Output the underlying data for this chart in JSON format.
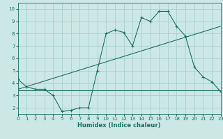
{
  "xlabel": "Humidex (Indice chaleur)",
  "xlim": [
    0,
    23
  ],
  "ylim": [
    1.5,
    10.5
  ],
  "xticks": [
    0,
    1,
    2,
    3,
    4,
    5,
    6,
    7,
    8,
    9,
    10,
    11,
    12,
    13,
    14,
    15,
    16,
    17,
    18,
    19,
    20,
    21,
    22,
    23
  ],
  "yticks": [
    2,
    3,
    4,
    5,
    6,
    7,
    8,
    9,
    10
  ],
  "bg_color": "#cce8e5",
  "line_color": "#1a7060",
  "grid_color": "#aacfcc",
  "line1_x": [
    0,
    1,
    2,
    3,
    4,
    5,
    6,
    7,
    8,
    9,
    10,
    11,
    12,
    13,
    14,
    15,
    16,
    17,
    18,
    19,
    20,
    21,
    22,
    23
  ],
  "line1_y": [
    4.3,
    3.7,
    3.5,
    3.5,
    3.0,
    1.7,
    1.8,
    2.0,
    2.0,
    5.0,
    8.0,
    8.3,
    8.1,
    7.0,
    9.3,
    9.0,
    9.8,
    9.8,
    8.6,
    7.8,
    5.3,
    4.5,
    4.1,
    3.3
  ],
  "line2_x": [
    0,
    23
  ],
  "line2_y": [
    3.4,
    3.4
  ],
  "line3_x": [
    0,
    23
  ],
  "line3_y": [
    3.5,
    8.6
  ],
  "figsize": [
    3.2,
    2.0
  ],
  "dpi": 100
}
